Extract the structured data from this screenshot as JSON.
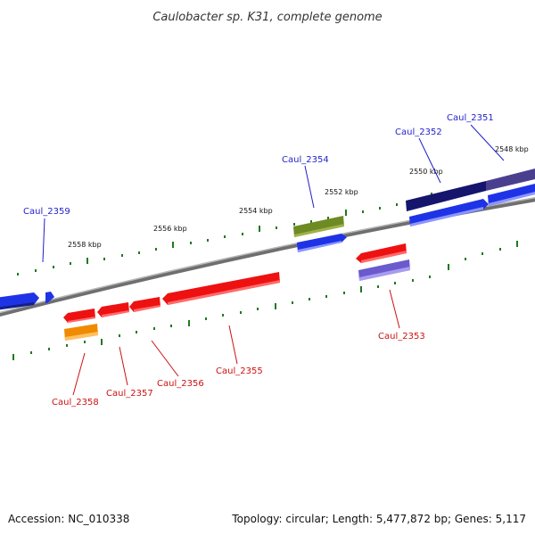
{
  "title": "Caulobacter sp. K31, complete genome",
  "footer": {
    "accession": "Accession: NC_010338",
    "summary": "Topology: circular; Length: 5,477,872 bp; Genes: 5,117"
  },
  "colors": {
    "backbone": "#8a8a8a",
    "tick": "#1f7a1f",
    "label_forward": "#1f1fcc",
    "label_reverse": "#cc1111",
    "forward_gene": "#1f33e6",
    "reverse_gene": "#ee1111",
    "rna_gene": "#f08a00",
    "forward_special": "#6e8a23",
    "dark_forward": "#15156e",
    "purple": "#6a5acd"
  },
  "scale_labels": [
    "2548 kbp",
    "2550 kbp",
    "2552 kbp",
    "2554 kbp",
    "2556 kbp",
    "2558 kbp"
  ],
  "gene_labels": [
    {
      "id": "Caul_2351",
      "strand": "forward"
    },
    {
      "id": "Caul_2352",
      "strand": "forward"
    },
    {
      "id": "Caul_2354",
      "strand": "forward"
    },
    {
      "id": "Caul_2359",
      "strand": "forward"
    },
    {
      "id": "Caul_2353",
      "strand": "reverse"
    },
    {
      "id": "Caul_2355",
      "strand": "reverse"
    },
    {
      "id": "Caul_2356",
      "strand": "reverse"
    },
    {
      "id": "Caul_2357",
      "strand": "reverse"
    },
    {
      "id": "Caul_2358",
      "strand": "reverse"
    }
  ]
}
